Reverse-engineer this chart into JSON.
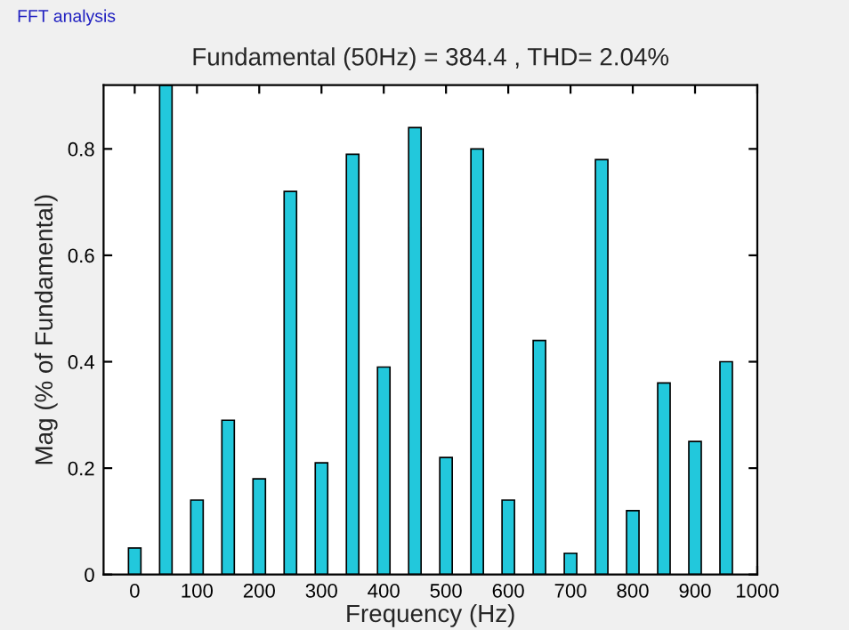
{
  "chart_data": {
    "type": "bar",
    "title": "Fundamental (50Hz) = 384.4 , THD= 2.04%",
    "xlabel": "Frequency (Hz)",
    "ylabel": "Mag (% of Fundamental)",
    "annotations": [
      "FFT analysis"
    ],
    "x": [
      0,
      50,
      100,
      150,
      200,
      250,
      300,
      350,
      400,
      450,
      500,
      550,
      600,
      650,
      700,
      750,
      800,
      850,
      900,
      950
    ],
    "values": [
      0.05,
      0.92,
      0.14,
      0.29,
      0.18,
      0.72,
      0.21,
      0.79,
      0.39,
      0.84,
      0.22,
      0.8,
      0.14,
      0.44,
      0.04,
      0.78,
      0.12,
      0.36,
      0.25,
      0.4
    ],
    "color": "#22c8dc",
    "xlim": [
      -50,
      1000
    ],
    "xticks": [
      0,
      100,
      200,
      300,
      400,
      500,
      600,
      700,
      800,
      900,
      1000
    ],
    "ylim": [
      0,
      0.92
    ],
    "yticks": [
      0,
      0.2,
      0.4,
      0.6,
      0.8
    ],
    "grid": false,
    "legend": false
  }
}
